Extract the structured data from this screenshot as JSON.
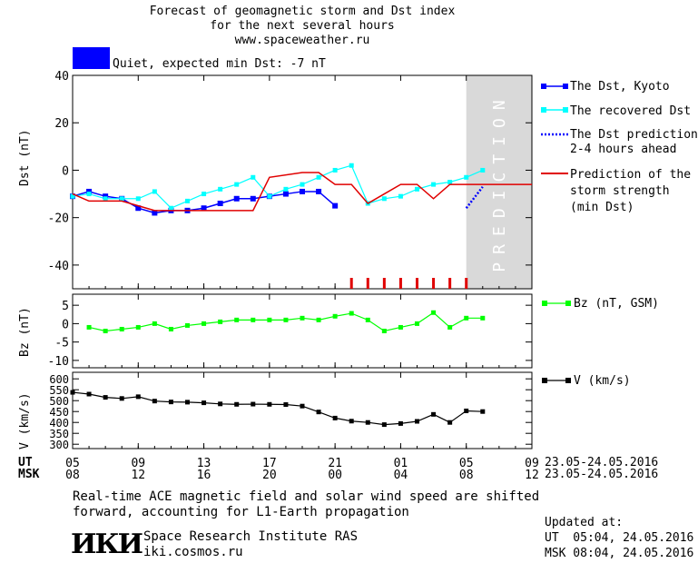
{
  "header": {
    "title_line1": "Forecast of geomagnetic storm and Dst index",
    "title_line2": "for the next several hours",
    "title_line3": "www.spaceweather.ru",
    "status_text": "Quiet, expected min Dst: -7 nT",
    "status_color": "#0000ff"
  },
  "legend": {
    "dst_kyoto": "The Dst, Kyoto",
    "dst_recovered": "The recovered Dst",
    "dst_pred_line1": "The Dst prediction",
    "dst_pred_line2": "2-4 hours ahead",
    "storm_line1": "Prediction of the",
    "storm_line2": "storm strength",
    "storm_line3": "(min Dst)",
    "bz": "Bz (nT, GSM)",
    "v": "V (km/s)"
  },
  "axes": {
    "dst_ylabel": "Dst (nT)",
    "bz_ylabel": "Bz (nT)",
    "v_ylabel": "V (km/s)",
    "prediction_label": "PREDICTION",
    "ut_label": "UT",
    "msk_label": "MSK",
    "ut_ticks": [
      "05",
      "09",
      "13",
      "17",
      "21",
      "01",
      "05",
      "09"
    ],
    "msk_ticks": [
      "08",
      "12",
      "16",
      "20",
      "00",
      "04",
      "08",
      "12"
    ],
    "date_range_ut": "23.05-24.05.2016",
    "date_range_msk": "23.05-24.05.2016"
  },
  "footer": {
    "note_line1": "Real-time ACE magnetic field and solar wind speed are shifted",
    "note_line2": "forward, accounting for L1-Earth propagation",
    "logo": "ИКИ",
    "org_name": "Space Research Institute RAS",
    "org_site": "iki.cosmos.ru",
    "updated_label": "Updated at:",
    "updated_ut": "UT  05:04, 24.05.2016",
    "updated_msk": "MSK 08:04, 24.05.2016"
  },
  "colors": {
    "kyoto": "#0000ff",
    "recovered": "#00ffff",
    "prediction": "#0000ff",
    "storm": "#e00000",
    "bz": "#00ff00",
    "v": "#000000",
    "prediction_bg": "#d9d9d9"
  },
  "chart_data": [
    {
      "type": "line",
      "title": "Forecast of geomagnetic storm and Dst index",
      "x_unit": "hours (UT, 05 = 23.05 05:00)",
      "xlim": [
        5,
        33
      ],
      "ylim": [
        -50,
        40
      ],
      "ylabel": "Dst (nT)",
      "y_ticks": [
        -40,
        -20,
        0,
        20,
        40
      ],
      "prediction_start": 29,
      "series": [
        {
          "name": "The Dst, Kyoto",
          "marker": "square",
          "x": [
            5,
            6,
            7,
            8,
            9,
            10,
            11,
            12,
            13,
            14,
            15,
            16,
            17,
            18,
            19,
            20,
            21
          ],
          "y": [
            -11,
            -9,
            -11,
            -12,
            -16,
            -18,
            -17,
            -17,
            -16,
            -14,
            -12,
            -12,
            -11,
            -10,
            -9,
            -9,
            -15
          ]
        },
        {
          "name": "The recovered Dst",
          "marker": "square",
          "x": [
            5,
            6,
            7,
            8,
            9,
            10,
            11,
            12,
            13,
            14,
            15,
            16,
            17,
            18,
            19,
            20,
            21,
            22,
            23,
            24,
            25,
            26,
            27,
            28,
            29,
            30
          ],
          "y": [
            -11,
            -10,
            -12,
            -12,
            -12,
            -9,
            -16,
            -13,
            -10,
            -8,
            -6,
            -3,
            -11,
            -8,
            -6,
            -3,
            0,
            2,
            -14,
            -12,
            -11,
            -8,
            -6,
            -5,
            -3,
            0
          ]
        },
        {
          "name": "The Dst prediction 2-4 hours ahead",
          "style": "dotted",
          "x": [
            29,
            30
          ],
          "y": [
            -16,
            -7
          ]
        },
        {
          "name": "Prediction of the storm strength (min Dst)",
          "style": "solid",
          "x": [
            5,
            6,
            8,
            9,
            10,
            11,
            12,
            15,
            16,
            17,
            19,
            20,
            21,
            22,
            23,
            24,
            25,
            26,
            27,
            28,
            29,
            33
          ],
          "y": [
            -10,
            -13,
            -13,
            -15,
            -17,
            -17,
            -17,
            -17,
            -17,
            -3,
            -1,
            -1,
            -6,
            -6,
            -14,
            -10,
            -6,
            -6,
            -12,
            -6,
            -6,
            -6
          ]
        }
      ],
      "storm_markers_x": [
        22,
        23,
        24,
        25,
        26,
        27,
        28,
        29
      ]
    },
    {
      "type": "line",
      "ylabel": "Bz (nT)",
      "ylim": [
        -12,
        8
      ],
      "y_ticks": [
        -10,
        -5,
        0,
        5
      ],
      "xlim": [
        5,
        33
      ],
      "series": [
        {
          "name": "Bz (nT, GSM)",
          "marker": "square",
          "x": [
            6,
            7,
            8,
            9,
            10,
            11,
            12,
            13,
            14,
            15,
            16,
            17,
            18,
            19,
            20,
            21,
            22,
            23,
            24,
            25,
            26,
            27,
            28,
            29,
            30
          ],
          "y": [
            -1,
            -2,
            -1.5,
            -1,
            0,
            -1.5,
            -0.5,
            0,
            0.5,
            1,
            1,
            1,
            1,
            1.5,
            1,
            2,
            2.8,
            1,
            -2,
            -1,
            0,
            3,
            -1,
            1.5,
            1.5
          ]
        }
      ]
    },
    {
      "type": "line",
      "ylabel": "V (km/s)",
      "ylim": [
        280,
        630
      ],
      "y_ticks": [
        300,
        350,
        400,
        450,
        500,
        550,
        600
      ],
      "xlim": [
        5,
        33
      ],
      "series": [
        {
          "name": "V (km/s)",
          "marker": "square",
          "x": [
            5,
            6,
            7,
            8,
            9,
            10,
            11,
            12,
            13,
            14,
            15,
            16,
            17,
            18,
            19,
            20,
            21,
            22,
            23,
            24,
            25,
            26,
            27,
            28,
            29,
            30
          ],
          "y": [
            538,
            530,
            515,
            510,
            518,
            498,
            494,
            493,
            490,
            485,
            483,
            484,
            483,
            482,
            475,
            448,
            420,
            406,
            400,
            390,
            395,
            405,
            437,
            400,
            453,
            450
          ]
        }
      ]
    }
  ]
}
